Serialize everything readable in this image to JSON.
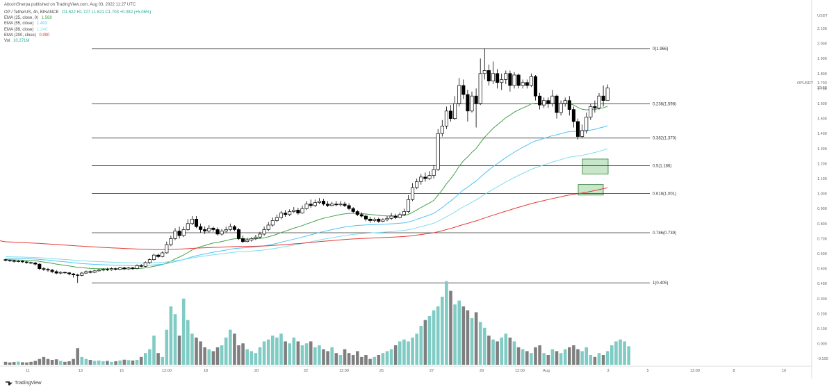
{
  "header": {
    "text": "AltcoinSherpa published on TradingView.com, Aug 03, 2022 11:27 UTC"
  },
  "legend": {
    "symbol": "OP / TetherUS, 4h, BINANCE",
    "ohlc": "O1.622  H1.727  L1.621  C1.703  +0.082 (+5.06%)",
    "ohlc_color": "#26a69a",
    "emas": [
      {
        "label": "EMA (25, close, 0)",
        "value": "1.568",
        "color": "#43a047"
      },
      {
        "label": "EMA (55, close)",
        "value": "1.403",
        "color": "#4fc3f7"
      },
      {
        "label": "EMA (89, close)",
        "value": "1.240",
        "color": "#80deea"
      },
      {
        "label": "EMA (200, close)",
        "value": "0.990",
        "color": "#e53935"
      }
    ],
    "volume": {
      "label": "Vol",
      "value": "10.271M",
      "color": "#26a69a"
    }
  },
  "footer": {
    "brand": "TradingView"
  },
  "chart_data": {
    "type": "candlestick",
    "symbol_label": "OPUSDT",
    "axis_unit": "USDT",
    "last_price": "1.703",
    "countdown": "32:28",
    "y_ticks": [
      "2.100",
      "2.000",
      "1.900",
      "1.800",
      "1.700",
      "1.600",
      "1.500",
      "1.400",
      "1.300",
      "1.200",
      "1.100",
      "1.000",
      "0.900",
      "0.800",
      "0.700",
      "0.600",
      "0.500",
      "0.400",
      "0.300",
      "0.200",
      "0.100",
      "0.000",
      "-0.100"
    ],
    "x_ticks": [
      "11",
      "13",
      "15",
      "12:00",
      "18",
      "20",
      "22",
      "12:00",
      "25",
      "27",
      "29",
      "12:00",
      "Aug",
      "3",
      "5",
      "12:00",
      "8",
      "10"
    ],
    "fib_levels": [
      {
        "label": "0(1.966)",
        "value": 1.966
      },
      {
        "label": "0.236(1.598)",
        "value": 1.598
      },
      {
        "label": "0.382(1.370)",
        "value": 1.37
      },
      {
        "label": "0.5(1.186)",
        "value": 1.186
      },
      {
        "label": "0.618(1.001)",
        "value": 1.001
      },
      {
        "label": "0.786(0.739)",
        "value": 0.739
      },
      {
        "label": "1(0.405)",
        "value": 0.405
      }
    ],
    "zones": [
      {
        "low": 1.13,
        "high": 1.23,
        "color": "#c8e6c9"
      },
      {
        "low": 0.99,
        "high": 1.06,
        "color": "#c8e6c9"
      }
    ],
    "candles": [
      [
        0.56,
        0.555,
        0.548,
        0.565
      ],
      [
        0.555,
        0.553,
        0.545,
        0.56
      ],
      [
        0.553,
        0.548,
        0.54,
        0.558
      ],
      [
        0.548,
        0.55,
        0.542,
        0.556
      ],
      [
        0.55,
        0.545,
        0.538,
        0.555
      ],
      [
        0.545,
        0.54,
        0.533,
        0.55
      ],
      [
        0.54,
        0.538,
        0.53,
        0.546
      ],
      [
        0.538,
        0.53,
        0.52,
        0.545
      ],
      [
        0.53,
        0.5,
        0.49,
        0.535
      ],
      [
        0.5,
        0.495,
        0.485,
        0.51
      ],
      [
        0.495,
        0.49,
        0.478,
        0.505
      ],
      [
        0.49,
        0.48,
        0.47,
        0.498
      ],
      [
        0.48,
        0.47,
        0.462,
        0.49
      ],
      [
        0.47,
        0.475,
        0.462,
        0.482
      ],
      [
        0.475,
        0.472,
        0.465,
        0.48
      ],
      [
        0.472,
        0.465,
        0.455,
        0.478
      ],
      [
        0.465,
        0.458,
        0.44,
        0.47
      ],
      [
        0.458,
        0.455,
        0.405,
        0.465
      ],
      [
        0.455,
        0.47,
        0.45,
        0.478
      ],
      [
        0.47,
        0.48,
        0.465,
        0.488
      ],
      [
        0.48,
        0.475,
        0.468,
        0.488
      ],
      [
        0.475,
        0.485,
        0.47,
        0.492
      ],
      [
        0.485,
        0.49,
        0.48,
        0.498
      ],
      [
        0.49,
        0.495,
        0.483,
        0.502
      ],
      [
        0.495,
        0.492,
        0.485,
        0.505
      ],
      [
        0.492,
        0.5,
        0.486,
        0.508
      ],
      [
        0.5,
        0.495,
        0.488,
        0.506
      ],
      [
        0.495,
        0.505,
        0.49,
        0.512
      ],
      [
        0.505,
        0.498,
        0.49,
        0.512
      ],
      [
        0.498,
        0.505,
        0.492,
        0.512
      ],
      [
        0.505,
        0.5,
        0.492,
        0.512
      ],
      [
        0.5,
        0.52,
        0.495,
        0.528
      ],
      [
        0.52,
        0.515,
        0.508,
        0.53
      ],
      [
        0.515,
        0.54,
        0.51,
        0.548
      ],
      [
        0.54,
        0.56,
        0.532,
        0.568
      ],
      [
        0.56,
        0.59,
        0.552,
        0.6
      ],
      [
        0.59,
        0.58,
        0.57,
        0.6
      ],
      [
        0.58,
        0.605,
        0.575,
        0.615
      ],
      [
        0.605,
        0.66,
        0.6,
        0.68
      ],
      [
        0.66,
        0.7,
        0.65,
        0.72
      ],
      [
        0.7,
        0.75,
        0.69,
        0.77
      ],
      [
        0.75,
        0.72,
        0.7,
        0.78
      ],
      [
        0.72,
        0.76,
        0.71,
        0.78
      ],
      [
        0.76,
        0.8,
        0.75,
        0.83
      ],
      [
        0.8,
        0.83,
        0.79,
        0.85
      ],
      [
        0.83,
        0.78,
        0.77,
        0.85
      ],
      [
        0.78,
        0.76,
        0.74,
        0.8
      ],
      [
        0.76,
        0.75,
        0.73,
        0.78
      ],
      [
        0.75,
        0.77,
        0.74,
        0.79
      ],
      [
        0.77,
        0.76,
        0.745,
        0.78
      ],
      [
        0.76,
        0.73,
        0.72,
        0.775
      ],
      [
        0.73,
        0.75,
        0.72,
        0.765
      ],
      [
        0.75,
        0.76,
        0.74,
        0.78
      ],
      [
        0.76,
        0.78,
        0.75,
        0.8
      ],
      [
        0.78,
        0.76,
        0.75,
        0.79
      ],
      [
        0.76,
        0.7,
        0.69,
        0.77
      ],
      [
        0.7,
        0.68,
        0.67,
        0.72
      ],
      [
        0.68,
        0.69,
        0.675,
        0.705
      ],
      [
        0.69,
        0.7,
        0.68,
        0.71
      ],
      [
        0.7,
        0.71,
        0.69,
        0.725
      ],
      [
        0.71,
        0.73,
        0.7,
        0.745
      ],
      [
        0.73,
        0.76,
        0.72,
        0.78
      ],
      [
        0.76,
        0.79,
        0.75,
        0.81
      ],
      [
        0.79,
        0.82,
        0.78,
        0.84
      ],
      [
        0.82,
        0.84,
        0.81,
        0.86
      ],
      [
        0.84,
        0.87,
        0.83,
        0.885
      ],
      [
        0.87,
        0.86,
        0.845,
        0.89
      ],
      [
        0.86,
        0.88,
        0.85,
        0.895
      ],
      [
        0.88,
        0.89,
        0.87,
        0.91
      ],
      [
        0.89,
        0.87,
        0.86,
        0.905
      ],
      [
        0.87,
        0.9,
        0.865,
        0.92
      ],
      [
        0.9,
        0.93,
        0.89,
        0.95
      ],
      [
        0.93,
        0.92,
        0.905,
        0.96
      ],
      [
        0.92,
        0.94,
        0.91,
        0.96
      ],
      [
        0.94,
        0.95,
        0.93,
        0.97
      ],
      [
        0.95,
        0.93,
        0.92,
        0.965
      ],
      [
        0.93,
        0.92,
        0.91,
        0.95
      ],
      [
        0.92,
        0.93,
        0.915,
        0.945
      ],
      [
        0.93,
        0.925,
        0.915,
        0.95
      ],
      [
        0.925,
        0.93,
        0.915,
        0.95
      ],
      [
        0.93,
        0.92,
        0.91,
        0.945
      ],
      [
        0.92,
        0.9,
        0.89,
        0.935
      ],
      [
        0.9,
        0.88,
        0.87,
        0.91
      ],
      [
        0.88,
        0.86,
        0.85,
        0.89
      ],
      [
        0.86,
        0.85,
        0.84,
        0.875
      ],
      [
        0.85,
        0.83,
        0.815,
        0.86
      ],
      [
        0.83,
        0.82,
        0.805,
        0.845
      ],
      [
        0.82,
        0.83,
        0.81,
        0.84
      ],
      [
        0.83,
        0.815,
        0.805,
        0.84
      ],
      [
        0.815,
        0.825,
        0.81,
        0.835
      ],
      [
        0.825,
        0.835,
        0.815,
        0.85
      ],
      [
        0.835,
        0.85,
        0.825,
        0.87
      ],
      [
        0.85,
        0.84,
        0.83,
        0.865
      ],
      [
        0.84,
        0.86,
        0.835,
        0.875
      ],
      [
        0.86,
        0.88,
        0.85,
        0.9
      ],
      [
        0.88,
        0.96,
        0.87,
        0.99
      ],
      [
        0.96,
        1.04,
        0.95,
        1.07
      ],
      [
        1.04,
        1.08,
        1.03,
        1.1
      ],
      [
        1.08,
        1.11,
        1.06,
        1.13
      ],
      [
        1.11,
        1.1,
        1.08,
        1.14
      ],
      [
        1.1,
        1.12,
        1.09,
        1.15
      ],
      [
        1.12,
        1.16,
        1.1,
        1.19
      ],
      [
        1.16,
        1.4,
        1.15,
        1.43
      ],
      [
        1.4,
        1.45,
        1.38,
        1.49
      ],
      [
        1.45,
        1.55,
        1.43,
        1.58
      ],
      [
        1.55,
        1.5,
        1.48,
        1.59
      ],
      [
        1.5,
        1.6,
        1.49,
        1.65
      ],
      [
        1.6,
        1.72,
        1.58,
        1.77
      ],
      [
        1.72,
        1.66,
        1.63,
        1.76
      ],
      [
        1.66,
        1.55,
        1.48,
        1.69
      ],
      [
        1.55,
        1.65,
        1.54,
        1.68
      ],
      [
        1.65,
        1.6,
        1.44,
        1.7
      ],
      [
        1.6,
        1.8,
        1.59,
        1.9
      ],
      [
        1.8,
        1.82,
        1.76,
        1.966
      ],
      [
        1.82,
        1.75,
        1.72,
        1.86
      ],
      [
        1.75,
        1.8,
        1.73,
        1.88
      ],
      [
        1.8,
        1.74,
        1.7,
        1.83
      ],
      [
        1.74,
        1.76,
        1.69,
        1.8
      ],
      [
        1.76,
        1.8,
        1.73,
        1.82
      ],
      [
        1.8,
        1.72,
        1.68,
        1.82
      ],
      [
        1.72,
        1.79,
        1.7,
        1.81
      ],
      [
        1.79,
        1.72,
        1.7,
        1.8
      ],
      [
        1.72,
        1.74,
        1.7,
        1.76
      ],
      [
        1.74,
        1.72,
        1.7,
        1.76
      ],
      [
        1.72,
        1.78,
        1.71,
        1.8
      ],
      [
        1.78,
        1.65,
        1.62,
        1.79
      ],
      [
        1.65,
        1.59,
        1.56,
        1.67
      ],
      [
        1.59,
        1.62,
        1.57,
        1.64
      ],
      [
        1.62,
        1.6,
        1.57,
        1.64
      ],
      [
        1.6,
        1.65,
        1.58,
        1.69
      ],
      [
        1.65,
        1.54,
        1.5,
        1.66
      ],
      [
        1.54,
        1.6,
        1.52,
        1.62
      ],
      [
        1.6,
        1.62,
        1.58,
        1.64
      ],
      [
        1.62,
        1.56,
        1.52,
        1.65
      ],
      [
        1.56,
        1.48,
        1.44,
        1.58
      ],
      [
        1.48,
        1.38,
        1.36,
        1.5
      ],
      [
        1.38,
        1.42,
        1.37,
        1.46
      ],
      [
        1.42,
        1.51,
        1.4,
        1.54
      ],
      [
        1.51,
        1.58,
        1.49,
        1.6
      ],
      [
        1.58,
        1.57,
        1.54,
        1.62
      ],
      [
        1.57,
        1.65,
        1.56,
        1.67
      ],
      [
        1.65,
        1.62,
        1.58,
        1.72
      ],
      [
        1.62,
        1.703,
        1.621,
        1.727
      ]
    ],
    "volumes": [
      0.015,
      0.012,
      0.014,
      0.016,
      0.013,
      0.012,
      0.015,
      0.02,
      0.03,
      0.04,
      0.03,
      0.025,
      0.028,
      0.02,
      0.015,
      0.018,
      0.03,
      0.085,
      0.04,
      0.03,
      0.025,
      0.02,
      0.022,
      0.018,
      0.02,
      0.015,
      0.018,
      0.022,
      0.026,
      0.024,
      0.022,
      0.025,
      0.04,
      0.06,
      0.08,
      0.15,
      0.06,
      0.04,
      0.18,
      0.3,
      0.26,
      0.15,
      0.34,
      0.23,
      0.16,
      0.14,
      0.12,
      0.09,
      0.08,
      0.07,
      0.09,
      0.1,
      0.14,
      0.18,
      0.16,
      0.1,
      0.11,
      0.08,
      0.07,
      0.06,
      0.09,
      0.12,
      0.13,
      0.15,
      0.14,
      0.16,
      0.12,
      0.11,
      0.14,
      0.12,
      0.1,
      0.11,
      0.12,
      0.09,
      0.1,
      0.08,
      0.07,
      0.09,
      0.06,
      0.05,
      0.08,
      0.06,
      0.05,
      0.07,
      0.04,
      0.05,
      0.03,
      0.04,
      0.05,
      0.06,
      0.07,
      0.08,
      0.1,
      0.12,
      0.13,
      0.12,
      0.14,
      0.16,
      0.2,
      0.23,
      0.25,
      0.28,
      0.3,
      0.35,
      0.43,
      0.38,
      0.31,
      0.33,
      0.3,
      0.28,
      0.24,
      0.27,
      0.22,
      0.19,
      0.15,
      0.13,
      0.12,
      0.14,
      0.16,
      0.14,
      0.12,
      0.09,
      0.08,
      0.07,
      0.06,
      0.09,
      0.1,
      0.06,
      0.05,
      0.08,
      0.07,
      0.06,
      0.08,
      0.09,
      0.1,
      0.08,
      0.07,
      0.09,
      0.05,
      0.04,
      0.06,
      0.05,
      0.07,
      0.1,
      0.12,
      0.13,
      0.12,
      0.095
    ]
  }
}
